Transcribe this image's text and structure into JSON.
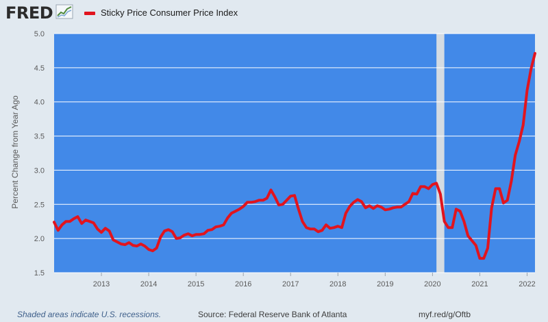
{
  "header": {
    "logo_text": "FRED",
    "logo_icon": "chart-trend-icon"
  },
  "legend": {
    "label": "Sticky Price Consumer Price Index",
    "color": "#e1141e"
  },
  "colors": {
    "plot_background": "#4289e8",
    "recession_shade": "#d4dbe2",
    "grid": "#ffffff",
    "line": "#e1141e"
  },
  "footer": {
    "recession_note": "Shaded areas indicate U.S. recessions.",
    "source": "Source: Federal Reserve Bank of Atlanta",
    "url": "myf.red/g/Oftb"
  },
  "chart_data": {
    "type": "line",
    "title": "",
    "xlabel": "",
    "ylabel": "Percent Change from Year Ago",
    "xlim": [
      "2012-01",
      "2022-03"
    ],
    "ylim": [
      1.5,
      5.0
    ],
    "x_ticks": [
      "2013",
      "2014",
      "2015",
      "2016",
      "2017",
      "2018",
      "2019",
      "2020",
      "2021",
      "2022"
    ],
    "y_ticks": [
      "1.5",
      "2.0",
      "2.5",
      "3.0",
      "3.5",
      "4.0",
      "4.5",
      "5.0"
    ],
    "grid": true,
    "recession_shading": [
      {
        "start": "2020-02",
        "end": "2020-04"
      }
    ],
    "series": [
      {
        "name": "Sticky Price Consumer Price Index",
        "x": [
          "2012-01",
          "2012-02",
          "2012-03",
          "2012-04",
          "2012-05",
          "2012-06",
          "2012-07",
          "2012-08",
          "2012-09",
          "2012-10",
          "2012-11",
          "2012-12",
          "2013-01",
          "2013-02",
          "2013-03",
          "2013-04",
          "2013-05",
          "2013-06",
          "2013-07",
          "2013-08",
          "2013-09",
          "2013-10",
          "2013-11",
          "2013-12",
          "2014-01",
          "2014-02",
          "2014-03",
          "2014-04",
          "2014-05",
          "2014-06",
          "2014-07",
          "2014-08",
          "2014-09",
          "2014-10",
          "2014-11",
          "2014-12",
          "2015-01",
          "2015-02",
          "2015-03",
          "2015-04",
          "2015-05",
          "2015-06",
          "2015-07",
          "2015-08",
          "2015-09",
          "2015-10",
          "2015-11",
          "2015-12",
          "2016-01",
          "2016-02",
          "2016-03",
          "2016-04",
          "2016-05",
          "2016-06",
          "2016-07",
          "2016-08",
          "2016-09",
          "2016-10",
          "2016-11",
          "2016-12",
          "2017-01",
          "2017-02",
          "2017-03",
          "2017-04",
          "2017-05",
          "2017-06",
          "2017-07",
          "2017-08",
          "2017-09",
          "2017-10",
          "2017-11",
          "2017-12",
          "2018-01",
          "2018-02",
          "2018-03",
          "2018-04",
          "2018-05",
          "2018-06",
          "2018-07",
          "2018-08",
          "2018-09",
          "2018-10",
          "2018-11",
          "2018-12",
          "2019-01",
          "2019-02",
          "2019-03",
          "2019-04",
          "2019-05",
          "2019-06",
          "2019-07",
          "2019-08",
          "2019-09",
          "2019-10",
          "2019-11",
          "2019-12",
          "2020-01",
          "2020-02",
          "2020-03",
          "2020-04",
          "2020-05",
          "2020-06",
          "2020-07",
          "2020-08",
          "2020-09",
          "2020-10",
          "2020-11",
          "2020-12",
          "2021-01",
          "2021-02",
          "2021-03",
          "2021-04",
          "2021-05",
          "2021-06",
          "2021-07",
          "2021-08",
          "2021-09",
          "2021-10",
          "2021-11",
          "2021-12",
          "2022-01",
          "2022-02",
          "2022-03"
        ],
        "values": [
          2.24,
          2.12,
          2.2,
          2.25,
          2.25,
          2.29,
          2.32,
          2.22,
          2.27,
          2.25,
          2.23,
          2.14,
          2.09,
          2.15,
          2.11,
          1.98,
          1.95,
          1.92,
          1.91,
          1.94,
          1.9,
          1.89,
          1.92,
          1.89,
          1.84,
          1.82,
          1.86,
          2.02,
          2.11,
          2.13,
          2.1,
          2.0,
          2.01,
          2.05,
          2.07,
          2.04,
          2.06,
          2.06,
          2.07,
          2.12,
          2.13,
          2.17,
          2.18,
          2.2,
          2.3,
          2.37,
          2.4,
          2.43,
          2.47,
          2.53,
          2.53,
          2.54,
          2.56,
          2.56,
          2.59,
          2.71,
          2.61,
          2.49,
          2.5,
          2.56,
          2.62,
          2.63,
          2.43,
          2.25,
          2.16,
          2.14,
          2.14,
          2.1,
          2.12,
          2.2,
          2.15,
          2.16,
          2.18,
          2.16,
          2.37,
          2.47,
          2.53,
          2.57,
          2.54,
          2.45,
          2.48,
          2.44,
          2.48,
          2.46,
          2.42,
          2.43,
          2.45,
          2.46,
          2.46,
          2.5,
          2.54,
          2.66,
          2.65,
          2.76,
          2.76,
          2.73,
          2.79,
          2.81,
          2.65,
          2.25,
          2.16,
          2.16,
          2.43,
          2.4,
          2.25,
          2.04,
          1.97,
          1.9,
          1.71,
          1.71,
          1.86,
          2.45,
          2.73,
          2.73,
          2.52,
          2.56,
          2.84,
          3.22,
          3.42,
          3.66,
          4.17,
          4.48,
          4.71
        ]
      }
    ]
  }
}
